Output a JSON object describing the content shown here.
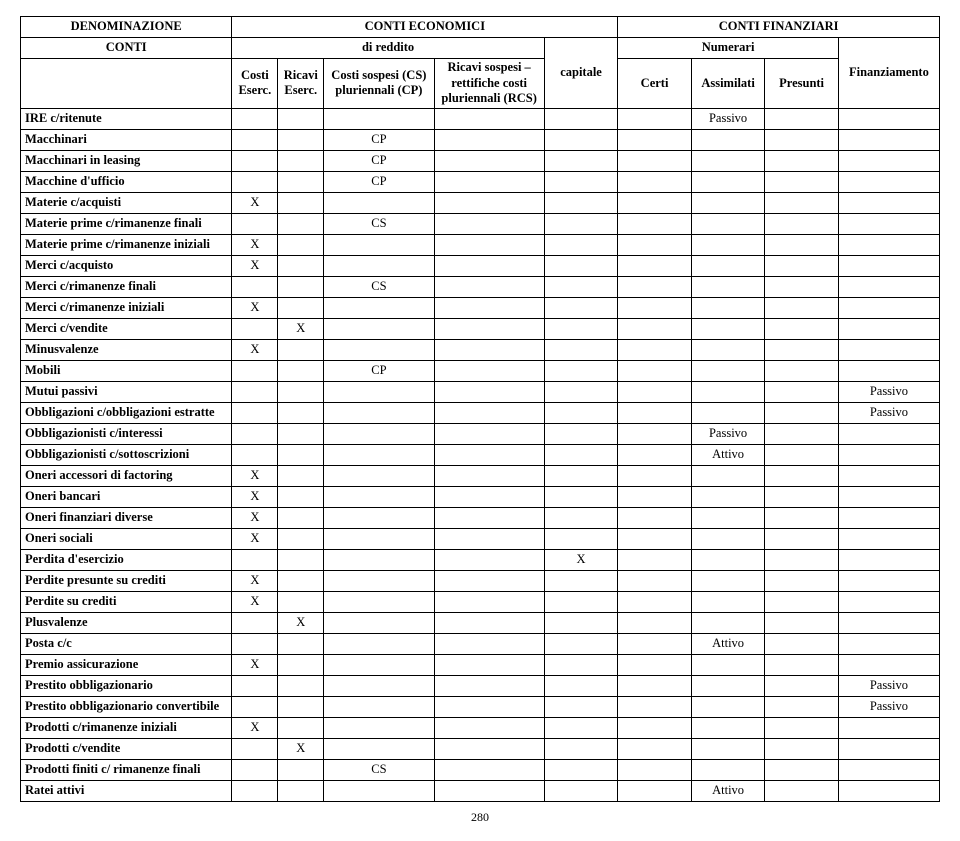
{
  "headers": {
    "denom": "DENOMINAZIONE",
    "economici": "CONTI ECONOMICI",
    "finanziari": "CONTI FINANZIARI",
    "conti": "CONTI",
    "reddito": "di reddito",
    "capitale": "capitale",
    "numerari": "Numerari",
    "finanziamento": "Finanziamento",
    "costi_eserc": "Costi Eserc.",
    "ricavi_eserc": "Ricavi Eserc.",
    "costi_sospesi": "Costi sospesi (CS) pluriennali (CP)",
    "ricavi_sospesi": "Ricavi sospesi – rettifiche costi pluriennali (RCS)",
    "certi": "Certi",
    "assimilati": "Assimilati",
    "presunti": "Presunti"
  },
  "page_number": "280",
  "rows": [
    {
      "label": "IRE c/ritenute",
      "cells": [
        "",
        "",
        "",
        "",
        "",
        "",
        "Passivo",
        "",
        ""
      ]
    },
    {
      "label": "Macchinari",
      "cells": [
        "",
        "",
        "CP",
        "",
        "",
        "",
        "",
        "",
        ""
      ]
    },
    {
      "label": "Macchinari in leasing",
      "cells": [
        "",
        "",
        "CP",
        "",
        "",
        "",
        "",
        "",
        ""
      ]
    },
    {
      "label": "Macchine d'ufficio",
      "cells": [
        "",
        "",
        "CP",
        "",
        "",
        "",
        "",
        "",
        ""
      ]
    },
    {
      "label": "Materie c/acquisti",
      "cells": [
        "X",
        "",
        "",
        "",
        "",
        "",
        "",
        "",
        ""
      ]
    },
    {
      "label": "Materie prime c/rimanenze finali",
      "cells": [
        "",
        "",
        "CS",
        "",
        "",
        "",
        "",
        "",
        ""
      ]
    },
    {
      "label": "Materie prime c/rimanenze iniziali",
      "cells": [
        "X",
        "",
        "",
        "",
        "",
        "",
        "",
        "",
        ""
      ]
    },
    {
      "label": "Merci c/acquisto",
      "cells": [
        "X",
        "",
        "",
        "",
        "",
        "",
        "",
        "",
        ""
      ]
    },
    {
      "label": "Merci c/rimanenze finali",
      "cells": [
        "",
        "",
        "CS",
        "",
        "",
        "",
        "",
        "",
        ""
      ]
    },
    {
      "label": "Merci c/rimanenze iniziali",
      "cells": [
        "X",
        "",
        "",
        "",
        "",
        "",
        "",
        "",
        ""
      ]
    },
    {
      "label": "Merci c/vendite",
      "cells": [
        "",
        "X",
        "",
        "",
        "",
        "",
        "",
        "",
        ""
      ]
    },
    {
      "label": "Minusvalenze",
      "cells": [
        "X",
        "",
        "",
        "",
        "",
        "",
        "",
        "",
        ""
      ]
    },
    {
      "label": "Mobili",
      "cells": [
        "",
        "",
        "CP",
        "",
        "",
        "",
        "",
        "",
        ""
      ]
    },
    {
      "label": "Mutui passivi",
      "cells": [
        "",
        "",
        "",
        "",
        "",
        "",
        "",
        "",
        "Passivo"
      ]
    },
    {
      "label": "Obbligazioni c/obbligazioni estratte",
      "cells": [
        "",
        "",
        "",
        "",
        "",
        "",
        "",
        "",
        "Passivo"
      ]
    },
    {
      "label": "Obbligazionisti c/interessi",
      "cells": [
        "",
        "",
        "",
        "",
        "",
        "",
        "Passivo",
        "",
        ""
      ]
    },
    {
      "label": "Obbligazionisti c/sottoscrizioni",
      "cells": [
        "",
        "",
        "",
        "",
        "",
        "",
        "Attivo",
        "",
        ""
      ]
    },
    {
      "label": "Oneri accessori di factoring",
      "cells": [
        "X",
        "",
        "",
        "",
        "",
        "",
        "",
        "",
        ""
      ]
    },
    {
      "label": "Oneri bancari",
      "cells": [
        "X",
        "",
        "",
        "",
        "",
        "",
        "",
        "",
        ""
      ]
    },
    {
      "label": "Oneri finanziari diverse",
      "cells": [
        "X",
        "",
        "",
        "",
        "",
        "",
        "",
        "",
        ""
      ]
    },
    {
      "label": "Oneri sociali",
      "cells": [
        "X",
        "",
        "",
        "",
        "",
        "",
        "",
        "",
        ""
      ]
    },
    {
      "label": "Perdita d'esercizio",
      "cells": [
        "",
        "",
        "",
        "",
        "X",
        "",
        "",
        "",
        ""
      ]
    },
    {
      "label": "Perdite presunte su crediti",
      "cells": [
        "X",
        "",
        "",
        "",
        "",
        "",
        "",
        "",
        ""
      ]
    },
    {
      "label": "Perdite su crediti",
      "cells": [
        "X",
        "",
        "",
        "",
        "",
        "",
        "",
        "",
        ""
      ]
    },
    {
      "label": "Plusvalenze",
      "cells": [
        "",
        "X",
        "",
        "",
        "",
        "",
        "",
        "",
        ""
      ]
    },
    {
      "label": "Posta c/c",
      "cells": [
        "",
        "",
        "",
        "",
        "",
        "",
        "Attivo",
        "",
        ""
      ]
    },
    {
      "label": "Premio assicurazione",
      "cells": [
        "X",
        "",
        "",
        "",
        "",
        "",
        "",
        "",
        ""
      ]
    },
    {
      "label": "Prestito obbligazionario",
      "cells": [
        "",
        "",
        "",
        "",
        "",
        "",
        "",
        "",
        "Passivo"
      ]
    },
    {
      "label": "Prestito obbligazionario convertibile",
      "cells": [
        "",
        "",
        "",
        "",
        "",
        "",
        "",
        "",
        "Passivo"
      ]
    },
    {
      "label": "Prodotti c/rimanenze iniziali",
      "cells": [
        "X",
        "",
        "",
        "",
        "",
        "",
        "",
        "",
        ""
      ]
    },
    {
      "label": "Prodotti c/vendite",
      "cells": [
        "",
        "X",
        "",
        "",
        "",
        "",
        "",
        "",
        ""
      ]
    },
    {
      "label": "Prodotti finiti c/ rimanenze finali",
      "cells": [
        "",
        "",
        "CS",
        "",
        "",
        "",
        "",
        "",
        ""
      ]
    },
    {
      "label": "Ratei attivi",
      "cells": [
        "",
        "",
        "",
        "",
        "",
        "",
        "Attivo",
        "",
        ""
      ]
    }
  ]
}
